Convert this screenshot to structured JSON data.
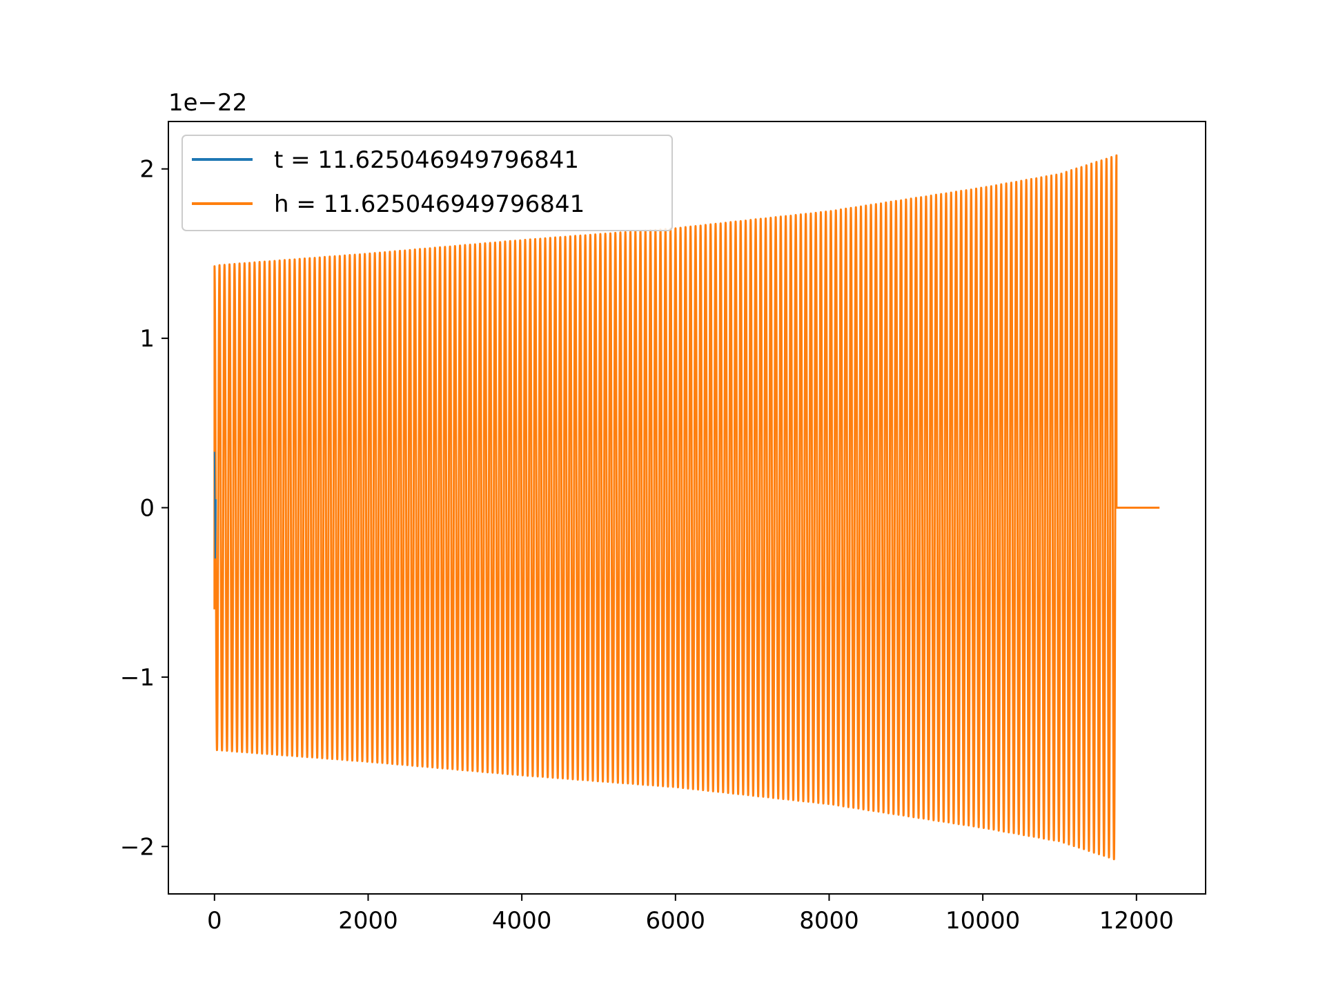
{
  "chart_data": {
    "type": "line",
    "title": "",
    "xlabel": "",
    "ylabel": "",
    "y_offset_label": "1e−22",
    "xlim": [
      -600,
      12900
    ],
    "ylim": [
      -2.28,
      2.28
    ],
    "x_ticks": [
      0,
      2000,
      4000,
      6000,
      8000,
      10000,
      12000
    ],
    "x_tick_labels": [
      "0",
      "2000",
      "4000",
      "6000",
      "8000",
      "10000",
      "12000"
    ],
    "y_ticks": [
      -2,
      -1,
      0,
      1,
      2
    ],
    "y_tick_labels": [
      "−2",
      "−1",
      "0",
      "1",
      "2"
    ],
    "grid": false,
    "legend_position": "top-left",
    "series": [
      {
        "name": "t = 11.625046949796841",
        "color": "#1f77b4",
        "x": [
          0,
          10,
          20
        ],
        "values": [
          0.33,
          -0.3,
          0.05
        ]
      },
      {
        "name": "h = 11.625046949796841",
        "color": "#ff7f0e",
        "signal": {
          "start_x": 0,
          "end_x": 11740,
          "tail_end_x": 12300,
          "start_value": -0.6,
          "envelope_x": [
            0,
            2000,
            4000,
            6000,
            8000,
            10000,
            11000,
            11740
          ],
          "envelope_values": [
            1.43,
            1.5,
            1.58,
            1.65,
            1.75,
            1.89,
            1.97,
            2.08
          ],
          "cycles": 180
        }
      }
    ]
  }
}
